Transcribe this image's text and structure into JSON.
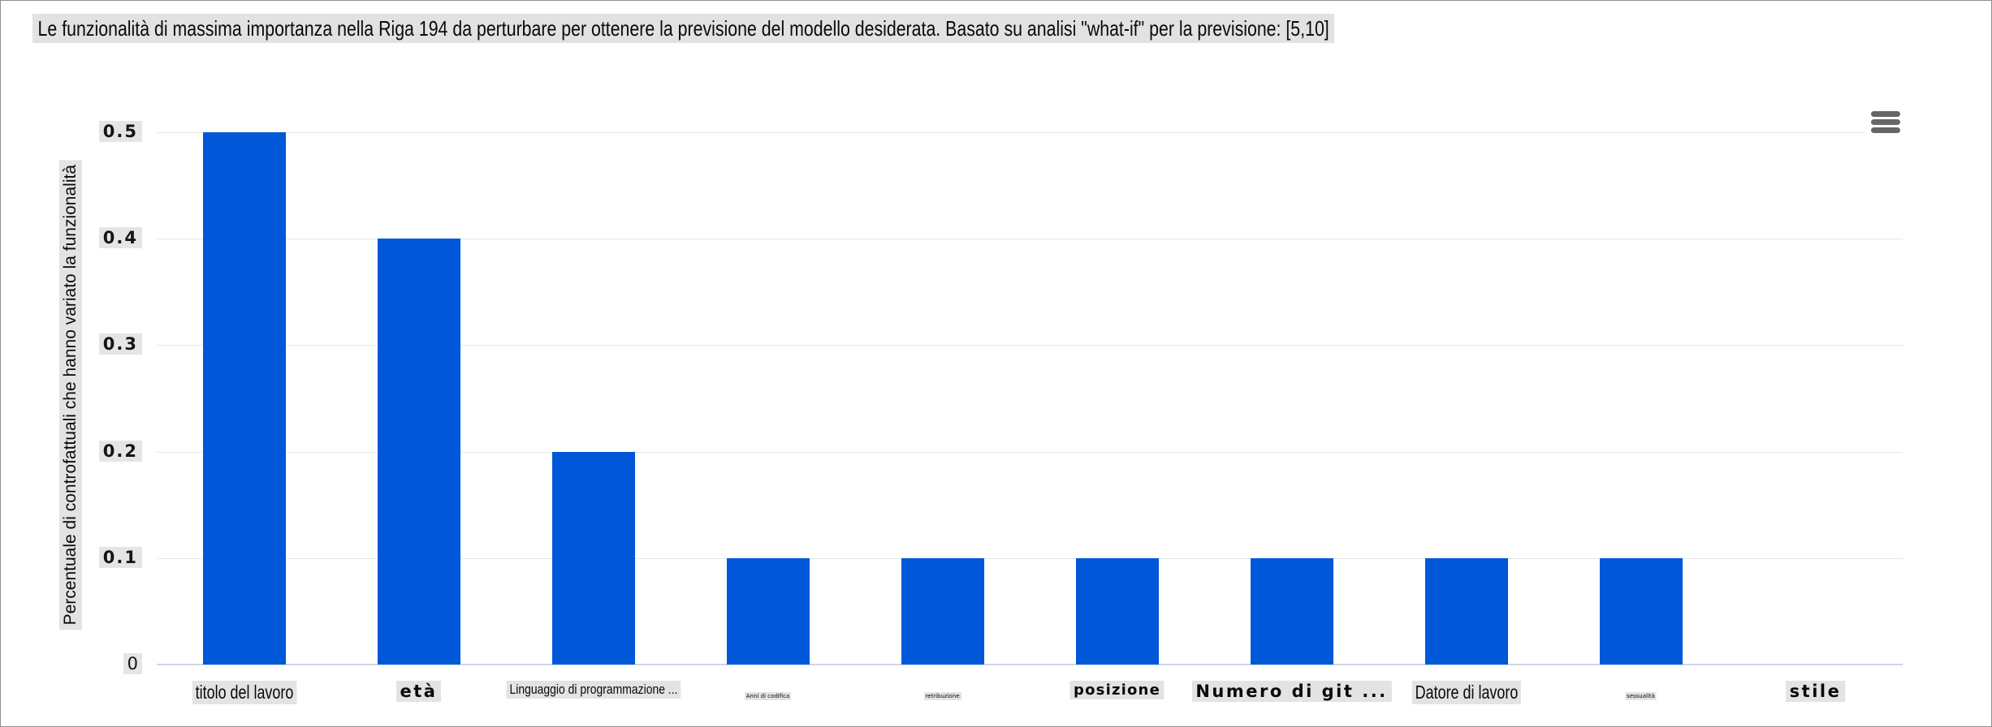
{
  "title": "Le funzionalità di massima importanza nella Riga 194 da perturbare per ottenere la previsione del modello desiderata. Basato su analisi \"what-if\" per la previsione: [5,10]",
  "menu": {
    "icon": "hamburger-menu-icon"
  },
  "colors": {
    "bar": "#0058d8",
    "gridline": "#e6e6e6",
    "axis_line": "#ccd6eb",
    "text_highlight": "#e3e3e3",
    "menu_icon": "#666666"
  },
  "chart_data": {
    "type": "bar",
    "title": "Le funzionalità di massima importanza nella Riga 194 da perturbare per ottenere la previsione del modello desiderata. Basato su analisi \"what-if\" per la previsione: [5,10]",
    "ylabel": "Percentuale di controfattuali che hanno variato la funzionalità",
    "xlabel": "",
    "categories": [
      "titolo del lavoro",
      "età",
      "Linguaggio di programmazione ...",
      "Anni di codifica",
      "retribuzione",
      "posizione",
      "Numero di git ...",
      "Datore di lavoro",
      "sessualità",
      "stile"
    ],
    "values": [
      0.5,
      0.4,
      0.2,
      0.1,
      0.1,
      0.1,
      0.1,
      0.1,
      0.1,
      0
    ],
    "label_styles": [
      "cond-lg",
      "wide-lg",
      "cond-md",
      "tiny",
      "tiny",
      "wide-md",
      "wide-lg",
      "cond-lg",
      "tiny",
      "wide-lg"
    ],
    "yticks": [
      "0.5",
      "0.4",
      "0.3",
      "0.2",
      "0.1",
      "0"
    ],
    "ylim": [
      0,
      0.5
    ],
    "grid": true,
    "legend": false,
    "bar_color": "#0058d8"
  }
}
